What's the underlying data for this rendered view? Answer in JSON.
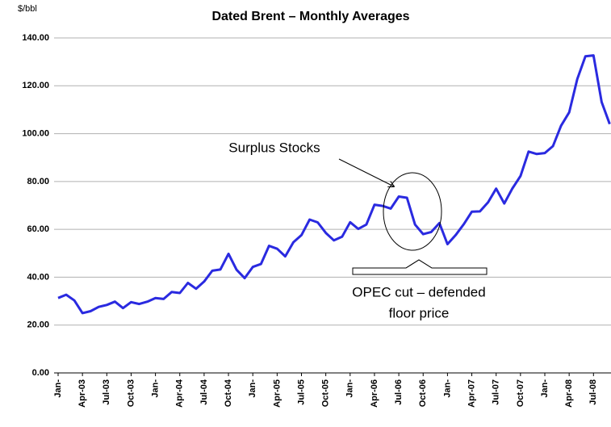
{
  "chart_data": {
    "type": "line",
    "title": "Dated Brent – Monthly Averages",
    "y_axis_label": "$/bbl",
    "categories": [
      "Jan-",
      null,
      null,
      "Apr-03",
      null,
      null,
      "Jul-03",
      null,
      null,
      "Oct-03",
      null,
      null,
      "Jan-",
      null,
      null,
      "Apr-04",
      null,
      null,
      "Jul-04",
      null,
      null,
      "Oct-04",
      null,
      null,
      "Jan-",
      null,
      null,
      "Apr-05",
      null,
      null,
      "Jul-05",
      null,
      null,
      "Oct-05",
      null,
      null,
      "Jan-",
      null,
      null,
      "Apr-06",
      null,
      null,
      "Jul-06",
      null,
      null,
      "Oct-06",
      null,
      null,
      "Jan-",
      null,
      null,
      "Apr-07",
      null,
      null,
      "Jul-07",
      null,
      null,
      "Oct-07",
      null,
      null,
      "Jan-",
      null,
      null,
      "Apr-08",
      null,
      null,
      "Jul-08",
      null,
      null
    ],
    "series": [
      {
        "name": "Dated Brent",
        "color": "#2a2ae0",
        "values": [
          31.3,
          32.7,
          30.3,
          25.0,
          25.8,
          27.6,
          28.4,
          29.8,
          27.1,
          29.6,
          28.8,
          29.8,
          31.3,
          30.9,
          33.8,
          33.4,
          37.6,
          35.2,
          38.2,
          42.7,
          43.2,
          49.8,
          43.1,
          39.6,
          44.3,
          45.5,
          53.1,
          51.9,
          48.7,
          54.6,
          57.6,
          64.1,
          62.9,
          58.5,
          55.4,
          56.9,
          63.0,
          60.2,
          62.0,
          70.3,
          69.8,
          68.7,
          73.7,
          73.2,
          62.0,
          58.0,
          58.9,
          62.6,
          53.8,
          57.6,
          62.1,
          67.4,
          67.5,
          71.3,
          77.0,
          70.8,
          77.1,
          82.3,
          92.5,
          91.5,
          91.9,
          94.8,
          103.3,
          108.9,
          122.8,
          132.3,
          132.7,
          113.2,
          104.0
        ]
      }
    ],
    "ylim": [
      0,
      140
    ],
    "yticks": [
      {
        "value": 0,
        "label": "0.00"
      },
      {
        "value": 20,
        "label": "20.00"
      },
      {
        "value": 40,
        "label": "40.00"
      },
      {
        "value": 60,
        "label": "60.00"
      },
      {
        "value": 80,
        "label": "80.00"
      },
      {
        "value": 100,
        "label": "100.00"
      },
      {
        "value": 120,
        "label": "120.00"
      },
      {
        "value": 140,
        "label": "140.00"
      }
    ],
    "grid": true,
    "annotations": [
      "Surplus Stocks",
      "OPEC cut – defended",
      "floor price"
    ]
  }
}
